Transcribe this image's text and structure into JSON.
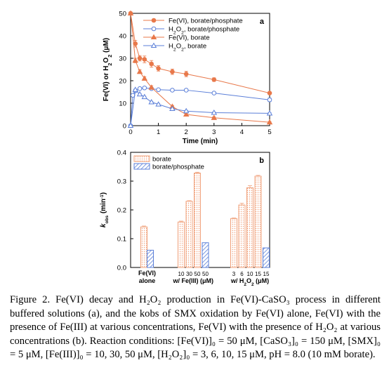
{
  "chart_data": [
    {
      "type": "line",
      "panel_label": "a",
      "xlabel": "Time (min)",
      "ylabel": "Fe(VI) or H₂O₂ (μM)",
      "xlim": [
        0,
        5
      ],
      "ylim": [
        0,
        50
      ],
      "xticks": [
        0,
        1,
        2,
        3,
        4,
        5
      ],
      "yticks": [
        0,
        10,
        20,
        30,
        40,
        50
      ],
      "grid": false,
      "legend_position": "top-right",
      "series": [
        {
          "name": "Fe(VI), borate/phosphate",
          "marker": "circle-filled",
          "color": "#e8784a",
          "x": [
            0,
            0.17,
            0.33,
            0.5,
            0.75,
            1,
            1.5,
            2,
            3,
            5
          ],
          "y": [
            50,
            36.5,
            30,
            29.5,
            27.5,
            25.5,
            24,
            23,
            20.5,
            14.5
          ],
          "err": [
            0.5,
            1.5,
            1.2,
            1.5,
            1.5,
            1.2,
            1.2,
            1.2,
            0.8,
            0.5
          ]
        },
        {
          "name": "H₂O₂, borate/phosphate",
          "marker": "circle-open",
          "color": "#5b7fd8",
          "x": [
            0,
            0.08,
            0.17,
            0.33,
            0.5,
            0.75,
            1,
            1.5,
            2,
            3,
            5
          ],
          "y": [
            0,
            13.5,
            15.5,
            16.5,
            16.8,
            16.5,
            16,
            15.8,
            15.8,
            14.5,
            11.5
          ],
          "err": [
            0,
            0.4,
            0.5,
            0.5,
            0.5,
            0.4,
            0.4,
            0.4,
            0.4,
            0.4,
            0.8
          ]
        },
        {
          "name": "Fe(VI), borate",
          "marker": "triangle-filled",
          "color": "#e8784a",
          "x": [
            0,
            0.17,
            0.33,
            0.5,
            0.75,
            1.5,
            2,
            3,
            5
          ],
          "y": [
            50,
            29,
            24,
            21,
            17,
            8.5,
            5,
            3.5,
            1.5
          ],
          "err": [
            0.5,
            1,
            0.8,
            0.8,
            0.8,
            0.5,
            0.4,
            0.4,
            0.3
          ]
        },
        {
          "name": "H₂O₂, borate",
          "marker": "triangle-open",
          "color": "#5b7fd8",
          "x": [
            0,
            0.17,
            0.33,
            0.5,
            0.75,
            1,
            1.5,
            2,
            3,
            5
          ],
          "y": [
            0,
            16,
            14,
            12.8,
            10.5,
            9.5,
            7.5,
            6.5,
            5.8,
            5.5
          ],
          "err": [
            0,
            0.3,
            0.3,
            0.3,
            0.3,
            0.3,
            0.3,
            0.3,
            0.3,
            0.3
          ]
        }
      ]
    },
    {
      "type": "bar",
      "panel_label": "b",
      "ylabel": "k_obs (min⁻¹)",
      "ylim": [
        0,
        0.4
      ],
      "yticks": [
        "0.0",
        "0.1",
        "0.2",
        "0.3",
        "0.4"
      ],
      "grid": false,
      "legend_position": "top-left",
      "series": [
        {
          "name": "borate",
          "color": "#f0a07a",
          "pattern": "dots"
        },
        {
          "name": "borate/phosphate",
          "color": "#5b7fd8",
          "pattern": "hatch"
        }
      ],
      "groups": [
        {
          "label_lines": [
            "Fe(VI)",
            "alone"
          ],
          "bars": [
            {
              "series": "borate",
              "value": 0.141,
              "err": 0.003
            },
            {
              "series": "borate/phosphate",
              "value": 0.06,
              "err": 0.0
            }
          ]
        },
        {
          "label_lines": [
            "w/ Fe(III) (μM)"
          ],
          "bars": [
            {
              "series": "borate",
              "tick": "10",
              "value": 0.158,
              "err": 0.003
            },
            {
              "series": "borate",
              "tick": "30",
              "value": 0.23,
              "err": 0.002
            },
            {
              "series": "borate",
              "tick": "50",
              "value": 0.328,
              "err": 0.003
            },
            {
              "series": "borate/phosphate",
              "tick": "50",
              "value": 0.086,
              "err": 0.0
            }
          ]
        },
        {
          "label_lines": [
            "w/ H₂O₂ (μM)"
          ],
          "bars": [
            {
              "series": "borate",
              "tick": "3",
              "value": 0.17,
              "err": 0.002
            },
            {
              "series": "borate",
              "tick": "6",
              "value": 0.217,
              "err": 0.006
            },
            {
              "series": "borate",
              "tick": "10",
              "value": 0.277,
              "err": 0.007
            },
            {
              "series": "borate",
              "tick": "15",
              "value": 0.317,
              "err": 0.003
            },
            {
              "series": "borate/phosphate",
              "tick": "15",
              "value": 0.068,
              "err": 0.0
            }
          ]
        }
      ]
    }
  ],
  "caption": "Figure 2. Fe(VI) decay and H₂O₂ production in Fe(VI)-CaSO₃ process in different buffered solutions (a), and the kobs of SMX oxidation by Fe(VI) alone, Fe(VI) with the presence of Fe(III) at various concentrations, Fe(VI) with the presence of H₂O₂ at various concentrations (b). Reaction conditions: [Fe(VI)]₀ = 50 μM, [CaSO₃]₀ = 150 μM, [SMX]₀ = 5 μM, [Fe(III)]₀ = 10, 30, 50 μM, [H₂O₂]₀ = 3, 6, 10, 15 μM, pH = 8.0 (10 mM borate)."
}
